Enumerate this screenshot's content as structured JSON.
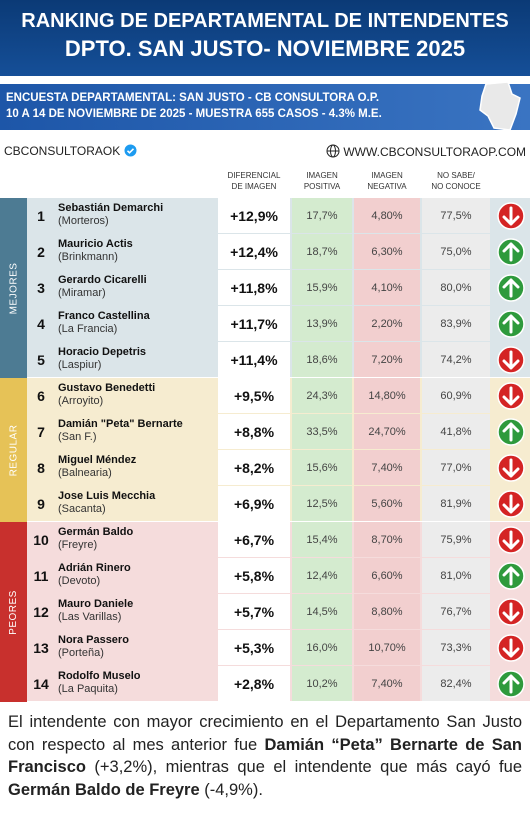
{
  "header": {
    "title_lines": [
      "RANKING DE DEPARTAMENTAL DE INTENDENTES",
      "DPTO. SAN JUSTO- NOVIEMBRE 2025"
    ]
  },
  "subheader": {
    "lines": [
      "ENCUESTA DEPARTAMENTAL: SAN JUSTO - CB CONSULTORA O.P.",
      "10 A 14 DE NOVIEMBRE  DE 2025 - MUESTRA 655 CASOS - 4.3% M.E."
    ]
  },
  "brand": {
    "handle": "CBCONSULTORAOK",
    "website": "WWW.CBCONSULTORAOP.COM"
  },
  "table": {
    "columns": [
      [
        "DIFERENCIAL",
        "DE IMAGEN"
      ],
      [
        "IMAGEN",
        "POSITIVA"
      ],
      [
        "IMAGEN",
        "NEGATIVA"
      ],
      [
        "NO SABE/",
        "NO CONOCE"
      ]
    ],
    "groups": [
      {
        "label": "MEJORES",
        "rows": [
          {
            "rank": "1",
            "name": "Sebastián Demarchi",
            "city": "(Morteros)",
            "diferencial": "+12,9%",
            "positiva": "17,7%",
            "negativa": "4,80%",
            "no_sabe": "77,5%",
            "trend": "down"
          },
          {
            "rank": "2",
            "name": "Mauricio Actis",
            "city": "(Brinkmann)",
            "diferencial": "+12,4%",
            "positiva": "18,7%",
            "negativa": "6,30%",
            "no_sabe": "75,0%",
            "trend": "up"
          },
          {
            "rank": "3",
            "name": "Gerardo Cicarelli",
            "city": "(Miramar)",
            "diferencial": "+11,8%",
            "positiva": "15,9%",
            "negativa": "4,10%",
            "no_sabe": "80,0%",
            "trend": "up"
          },
          {
            "rank": "4",
            "name": "Franco Castellina",
            "city": "(La Francia)",
            "diferencial": "+11,7%",
            "positiva": "13,9%",
            "negativa": "2,20%",
            "no_sabe": "83,9%",
            "trend": "up"
          },
          {
            "rank": "5",
            "name": "Horacio Depetris",
            "city": "(Laspiur)",
            "diferencial": "+11,4%",
            "positiva": "18,6%",
            "negativa": "7,20%",
            "no_sabe": "74,2%",
            "trend": "down"
          }
        ]
      },
      {
        "label": "REGULAR",
        "rows": [
          {
            "rank": "6",
            "name": "Gustavo Benedetti",
            "city": "(Arroyito)",
            "diferencial": "+9,5%",
            "positiva": "24,3%",
            "negativa": "14,80%",
            "no_sabe": "60,9%",
            "trend": "down"
          },
          {
            "rank": "7",
            "name": "Damián \"Peta\" Bernarte",
            "city": "(San F.)",
            "diferencial": "+8,8%",
            "positiva": "33,5%",
            "negativa": "24,70%",
            "no_sabe": "41,8%",
            "trend": "up"
          },
          {
            "rank": "8",
            "name": "Miguel Méndez",
            "city": "(Balnearia)",
            "diferencial": "+8,2%",
            "positiva": "15,6%",
            "negativa": "7,40%",
            "no_sabe": "77,0%",
            "trend": "down"
          },
          {
            "rank": "9",
            "name": "Jose Luis Mecchia",
            "city": "(Sacanta)",
            "diferencial": "+6,9%",
            "positiva": "12,5%",
            "negativa": "5,60%",
            "no_sabe": "81,9%",
            "trend": "down"
          }
        ]
      },
      {
        "label": "PEORES",
        "rows": [
          {
            "rank": "10",
            "name": "Germán Baldo",
            "city": "(Freyre)",
            "diferencial": "+6,7%",
            "positiva": "15,4%",
            "negativa": "8,70%",
            "no_sabe": "75,9%",
            "trend": "down"
          },
          {
            "rank": "11",
            "name": "Adrián Rinero",
            "city": "(Devoto)",
            "diferencial": "+5,8%",
            "positiva": "12,4%",
            "negativa": "6,60%",
            "no_sabe": "81,0%",
            "trend": "up"
          },
          {
            "rank": "12",
            "name": "Mauro Daniele",
            "city": "(Las Varillas)",
            "diferencial": "+5,7%",
            "positiva": "14,5%",
            "negativa": "8,80%",
            "no_sabe": "76,7%",
            "trend": "down"
          },
          {
            "rank": "13",
            "name": "Nora Passero",
            "city": "(Porteña)",
            "diferencial": "+5,3%",
            "positiva": "16,0%",
            "negativa": "10,70%",
            "no_sabe": "73,3%",
            "trend": "down"
          },
          {
            "rank": "14",
            "name": "Rodolfo Muselo",
            "city": "(La Paquita)",
            "diferencial": "+2,8%",
            "positiva": "10,2%",
            "negativa": "7,40%",
            "no_sabe": "82,4%",
            "trend": "up"
          }
        ]
      }
    ]
  },
  "footer": {
    "segments": [
      {
        "text": "El intendente con mayor crecimiento en el Departamento San Justo con respecto al mes anterior fue ",
        "bold": false
      },
      {
        "text": "Damián “Peta” Bernarte de San Francisco",
        "bold": true
      },
      {
        "text": " (+3,2%), mientras que el intendente que más cayó fue ",
        "bold": false
      },
      {
        "text": "Germán Baldo de Freyre",
        "bold": true
      },
      {
        "text": " (-4,9%).",
        "bold": false
      }
    ]
  }
}
